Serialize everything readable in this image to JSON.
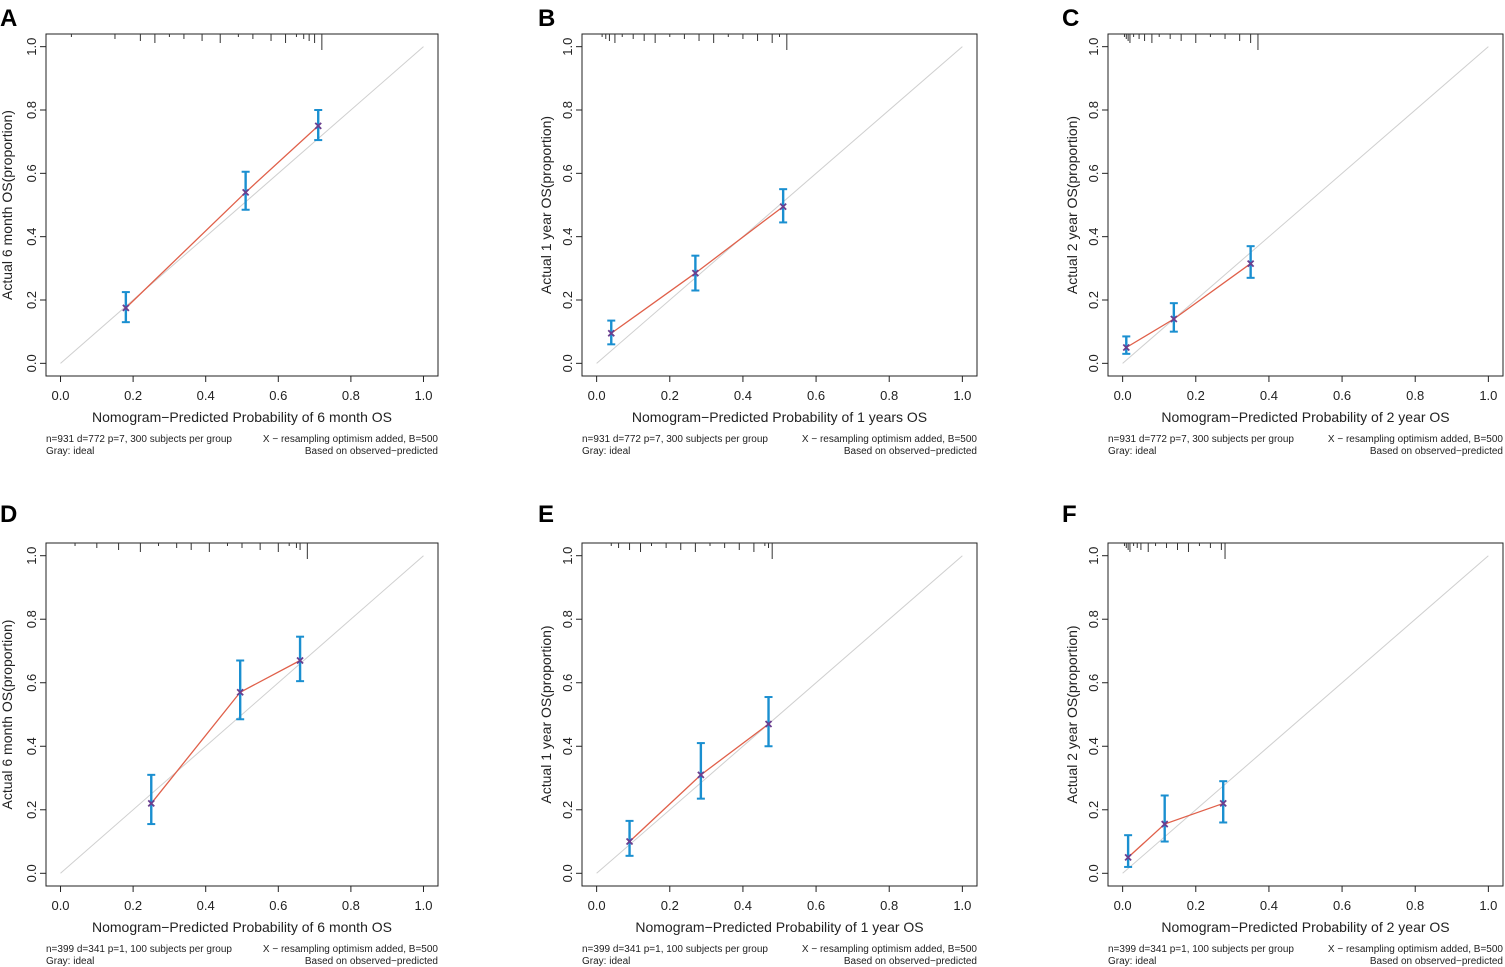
{
  "chart_data": [
    {
      "panel": "A",
      "type": "line",
      "xlabel": "Nomogram−Predicted Probability of 6 month OS",
      "ylabel": "Actual 6 month OS(proportion)",
      "xlim": [
        0,
        1
      ],
      "ylim": [
        0,
        1
      ],
      "xticks": [
        "0.0",
        "0.2",
        "0.4",
        "0.6",
        "0.8",
        "1.0"
      ],
      "yticks": [
        "0.0",
        "0.2",
        "0.4",
        "0.6",
        "0.8",
        "1.0"
      ],
      "reference": {
        "name": "Gray: ideal",
        "x": [
          0,
          1
        ],
        "y": [
          0,
          1
        ]
      },
      "series": [
        {
          "name": "calibration",
          "x": [
            0.18,
            0.51,
            0.71
          ],
          "y": [
            0.175,
            0.54,
            0.75
          ],
          "lower": [
            0.13,
            0.485,
            0.705
          ],
          "upper": [
            0.225,
            0.605,
            0.8
          ]
        }
      ],
      "rug": [
        0.03,
        0.15,
        0.22,
        0.26,
        0.3,
        0.34,
        0.39,
        0.44,
        0.49,
        0.53,
        0.58,
        0.62,
        0.65,
        0.67,
        0.685,
        0.7,
        0.72
      ],
      "footer": {
        "left1": "n=931 d=772 p=7, 300 subjects per group",
        "left2": "Gray: ideal",
        "right1": "X − resampling optimism added, B=500",
        "right2": "Based on observed−predicted"
      }
    },
    {
      "panel": "B",
      "type": "line",
      "xlabel": "Nomogram−Predicted Probability of 1 years OS",
      "ylabel": "Actual 1 year OS(proportion)",
      "xlim": [
        0,
        1
      ],
      "ylim": [
        0,
        1
      ],
      "xticks": [
        "0.0",
        "0.2",
        "0.4",
        "0.6",
        "0.8",
        "1.0"
      ],
      "yticks": [
        "0.0",
        "0.2",
        "0.4",
        "0.6",
        "0.8",
        "1.0"
      ],
      "reference": {
        "name": "Gray: ideal",
        "x": [
          0,
          1
        ],
        "y": [
          0,
          1
        ]
      },
      "series": [
        {
          "name": "calibration",
          "x": [
            0.04,
            0.27,
            0.51
          ],
          "y": [
            0.095,
            0.285,
            0.495
          ],
          "lower": [
            0.06,
            0.23,
            0.445
          ],
          "upper": [
            0.135,
            0.34,
            0.55
          ]
        }
      ],
      "rug": [
        0.015,
        0.025,
        0.035,
        0.05,
        0.07,
        0.1,
        0.13,
        0.16,
        0.2,
        0.24,
        0.28,
        0.32,
        0.36,
        0.4,
        0.44,
        0.48,
        0.5,
        0.52
      ],
      "footer": {
        "left1": "n=931 d=772 p=7, 300 subjects per group",
        "left2": "Gray: ideal",
        "right1": "X − resampling optimism added, B=500",
        "right2": "Based on observed−predicted"
      }
    },
    {
      "panel": "C",
      "type": "line",
      "xlabel": "Nomogram−Predicted Probability of 2 year OS",
      "ylabel": "Actual 2 year OS(proportion)",
      "xlim": [
        0,
        1
      ],
      "ylim": [
        0,
        1
      ],
      "xticks": [
        "0.0",
        "0.2",
        "0.4",
        "0.6",
        "0.8",
        "1.0"
      ],
      "yticks": [
        "0.0",
        "0.2",
        "0.4",
        "0.6",
        "0.8",
        "1.0"
      ],
      "reference": {
        "name": "Gray: ideal",
        "x": [
          0,
          1
        ],
        "y": [
          0,
          1
        ]
      },
      "series": [
        {
          "name": "calibration",
          "x": [
            0.01,
            0.14,
            0.35
          ],
          "y": [
            0.05,
            0.14,
            0.315
          ],
          "lower": [
            0.03,
            0.1,
            0.27
          ],
          "upper": [
            0.085,
            0.19,
            0.37
          ]
        }
      ],
      "rug": [
        0.005,
        0.01,
        0.015,
        0.02,
        0.03,
        0.045,
        0.06,
        0.08,
        0.1,
        0.13,
        0.16,
        0.2,
        0.24,
        0.28,
        0.32,
        0.35,
        0.37
      ],
      "footer": {
        "left1": "n=931 d=772 p=7, 300 subjects per group",
        "left2": "Gray: ideal",
        "right1": "X − resampling optimism added, B=500",
        "right2": "Based on observed−predicted"
      }
    },
    {
      "panel": "D",
      "type": "line",
      "xlabel": "Nomogram−Predicted Probability of 6 month OS",
      "ylabel": "Actual 6 month OS(proportion)",
      "xlim": [
        0,
        1
      ],
      "ylim": [
        0,
        1
      ],
      "xticks": [
        "0.0",
        "0.2",
        "0.4",
        "0.6",
        "0.8",
        "1.0"
      ],
      "yticks": [
        "0.0",
        "0.2",
        "0.4",
        "0.6",
        "0.8",
        "1.0"
      ],
      "reference": {
        "name": "Gray: ideal",
        "x": [
          0,
          1
        ],
        "y": [
          0,
          1
        ]
      },
      "series": [
        {
          "name": "calibration",
          "x": [
            0.25,
            0.495,
            0.66
          ],
          "y": [
            0.22,
            0.57,
            0.67
          ],
          "lower": [
            0.155,
            0.485,
            0.605
          ],
          "upper": [
            0.31,
            0.67,
            0.745
          ]
        }
      ],
      "rug": [
        0.04,
        0.1,
        0.16,
        0.22,
        0.27,
        0.32,
        0.36,
        0.41,
        0.46,
        0.5,
        0.55,
        0.6,
        0.63,
        0.65,
        0.66,
        0.68
      ],
      "footer": {
        "left1": "n=399 d=341 p=1, 100 subjects per group",
        "left2": "Gray: ideal",
        "right1": "X − resampling optimism added, B=500",
        "right2": "Based on observed−predicted"
      }
    },
    {
      "panel": "E",
      "type": "line",
      "xlabel": "Nomogram−Predicted Probability of 1 year OS",
      "ylabel": "Actual 1 year OS(proportion)",
      "xlim": [
        0,
        1
      ],
      "ylim": [
        0,
        1
      ],
      "xticks": [
        "0.0",
        "0.2",
        "0.4",
        "0.6",
        "0.8",
        "1.0"
      ],
      "yticks": [
        "0.0",
        "0.2",
        "0.4",
        "0.6",
        "0.8",
        "1.0"
      ],
      "reference": {
        "name": "Gray: ideal",
        "x": [
          0,
          1
        ],
        "y": [
          0,
          1
        ]
      },
      "series": [
        {
          "name": "calibration",
          "x": [
            0.09,
            0.285,
            0.47
          ],
          "y": [
            0.1,
            0.31,
            0.47
          ],
          "lower": [
            0.055,
            0.235,
            0.4
          ],
          "upper": [
            0.165,
            0.41,
            0.555
          ]
        }
      ],
      "rug": [
        0.04,
        0.06,
        0.09,
        0.12,
        0.15,
        0.19,
        0.23,
        0.27,
        0.31,
        0.35,
        0.39,
        0.43,
        0.46,
        0.47,
        0.48
      ],
      "footer": {
        "left1": "n=399 d=341 p=1, 100 subjects per group",
        "left2": "Gray: ideal",
        "right1": "X − resampling optimism added, B=500",
        "right2": "Based on observed−predicted"
      }
    },
    {
      "panel": "F",
      "type": "line",
      "xlabel": "Nomogram−Predicted Probability of 2 year OS",
      "ylabel": "Actual 2 year OS(proportion)",
      "xlim": [
        0,
        1
      ],
      "ylim": [
        0,
        1
      ],
      "xticks": [
        "0.0",
        "0.2",
        "0.4",
        "0.6",
        "0.8",
        "1.0"
      ],
      "yticks": [
        "0.0",
        "0.2",
        "0.4",
        "0.6",
        "0.8",
        "1.0"
      ],
      "reference": {
        "name": "Gray: ideal",
        "x": [
          0,
          1
        ],
        "y": [
          0,
          1
        ]
      },
      "series": [
        {
          "name": "calibration",
          "x": [
            0.015,
            0.115,
            0.275
          ],
          "y": [
            0.05,
            0.155,
            0.22
          ],
          "lower": [
            0.02,
            0.1,
            0.16
          ],
          "upper": [
            0.12,
            0.245,
            0.29
          ]
        }
      ],
      "rug": [
        0.005,
        0.01,
        0.015,
        0.02,
        0.03,
        0.04,
        0.05,
        0.07,
        0.09,
        0.12,
        0.15,
        0.18,
        0.21,
        0.24,
        0.27,
        0.28
      ],
      "footer": {
        "left1": "n=399 d=341 p=1, 100 subjects per group",
        "left2": "Gray: ideal",
        "right1": "X − resampling optimism added, B=500",
        "right2": "Based on observed−predicted"
      }
    }
  ]
}
